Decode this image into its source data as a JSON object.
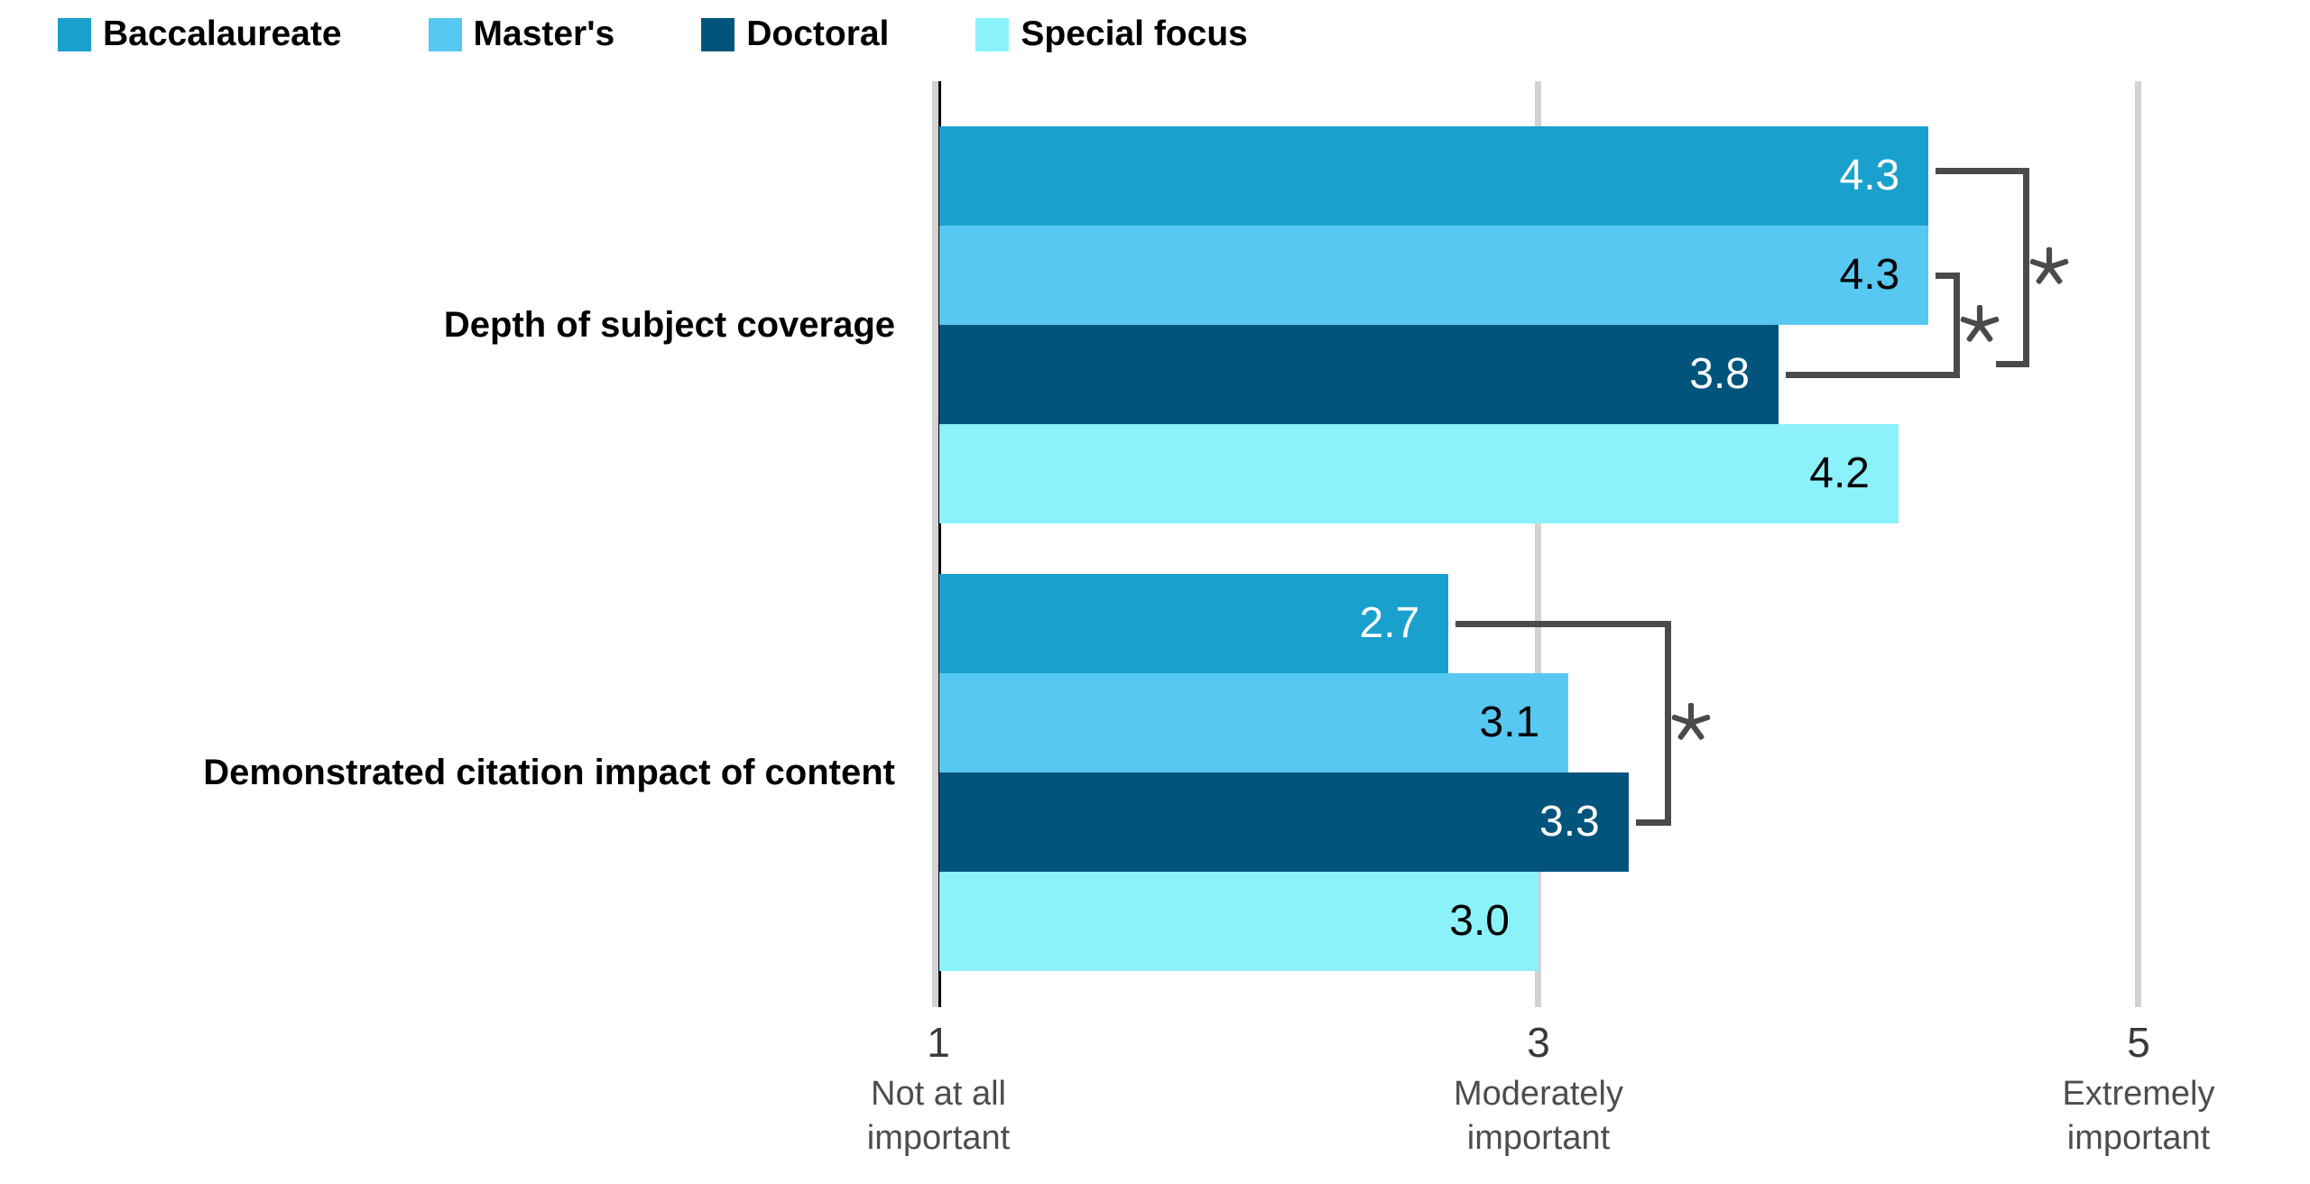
{
  "legend": {
    "position": "top-left",
    "items": [
      {
        "label": "Baccalaureate",
        "color": "#1aa0cd"
      },
      {
        "label": "Master's",
        "color": "#56c8f2"
      },
      {
        "label": "Doctoral",
        "color": "#03547c"
      },
      {
        "label": "Special focus",
        "color": "#8bf2fb"
      }
    ]
  },
  "chart_data": {
    "type": "bar",
    "orientation": "horizontal",
    "categories": [
      "Depth of subject coverage",
      "Demonstrated citation impact of content"
    ],
    "series": [
      {
        "name": "Baccalaureate",
        "color": "#1aa0cd",
        "value_label_color": "#ffffff",
        "values": [
          4.3,
          2.7
        ]
      },
      {
        "name": "Master's",
        "color": "#56c8f2",
        "value_label_color": "#000000",
        "values": [
          4.3,
          3.1
        ]
      },
      {
        "name": "Doctoral",
        "color": "#03547c",
        "value_label_color": "#ffffff",
        "values": [
          3.8,
          3.3
        ]
      },
      {
        "name": "Special focus",
        "color": "#8bf2fb",
        "value_label_color": "#000000",
        "values": [
          4.2,
          3.0
        ]
      }
    ],
    "value_labels": {
      "Depth of subject coverage": [
        "4.3",
        "4.3",
        "3.8",
        "4.2"
      ],
      "Demonstrated citation impact of content": [
        "2.7",
        "3.1",
        "3.3",
        "3.0"
      ]
    },
    "xlim": [
      1,
      5
    ],
    "x_ticks": [
      {
        "value": 1,
        "label": "1",
        "sublabel": "Not at all\nimportant"
      },
      {
        "value": 3,
        "label": "3",
        "sublabel": "Moderately\nimportant"
      },
      {
        "value": 5,
        "label": "5",
        "sublabel": "Extremely\nimportant"
      }
    ],
    "grid": "vertical lines at ticks",
    "legend_position": "top-left",
    "significance_brackets": [
      {
        "category_index": 0,
        "series_a": "Baccalaureate",
        "series_b": "Doctoral",
        "label": "*"
      },
      {
        "category_index": 0,
        "series_a": "Master's",
        "series_b": "Doctoral",
        "label": "*"
      },
      {
        "category_index": 1,
        "series_a": "Baccalaureate",
        "series_b": "Doctoral",
        "label": "*"
      }
    ],
    "colors": {
      "gridline": "#d2d2d2",
      "axis_baseline": "#000000",
      "bracket": "#4a4a4a",
      "tick_number": "#3a3a3a",
      "tick_sublabel": "#4d4d4d"
    }
  }
}
